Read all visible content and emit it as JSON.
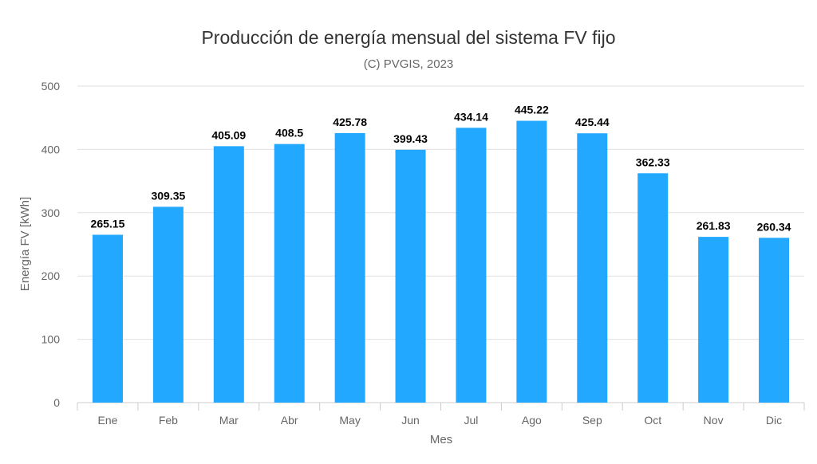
{
  "chart_data": {
    "type": "bar",
    "title": "Producción de energía mensual del sistema FV fijo",
    "subtitle": "(C) PVGIS, 2023",
    "xlabel": "Mes",
    "ylabel": "Energía FV [kWh]",
    "ylim": [
      0,
      500
    ],
    "yticks": [
      0,
      100,
      200,
      300,
      400,
      500
    ],
    "grid": true,
    "categories": [
      "Ene",
      "Feb",
      "Mar",
      "Abr",
      "May",
      "Jun",
      "Jul",
      "Ago",
      "Sep",
      "Oct",
      "Nov",
      "Dic"
    ],
    "values": [
      265.15,
      309.35,
      405.09,
      408.5,
      425.78,
      399.43,
      434.14,
      445.22,
      425.44,
      362.33,
      261.83,
      260.34
    ],
    "data_labels": [
      "265.15",
      "309.35",
      "405.09",
      "408.5",
      "425.78",
      "399.43",
      "434.14",
      "445.22",
      "425.44",
      "362.33",
      "261.83",
      "260.34"
    ],
    "bar_color": "#22A8FF"
  }
}
